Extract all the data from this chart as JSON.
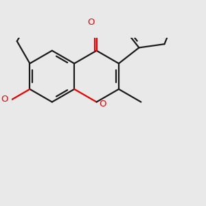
{
  "bg_color": "#e9e9e9",
  "bond_color": "#1a1a1a",
  "lw": 1.6,
  "O_color": "#ee0000",
  "F_color": "#cc00cc",
  "font_size": 9.5,
  "fig_size": [
    3.0,
    3.0
  ],
  "dpi": 100,
  "r": 0.72,
  "shift_x": 1.55,
  "shift_y": 1.55,
  "xlim": [
    -0.2,
    5.2
  ],
  "ylim": [
    -1.7,
    3.0
  ]
}
